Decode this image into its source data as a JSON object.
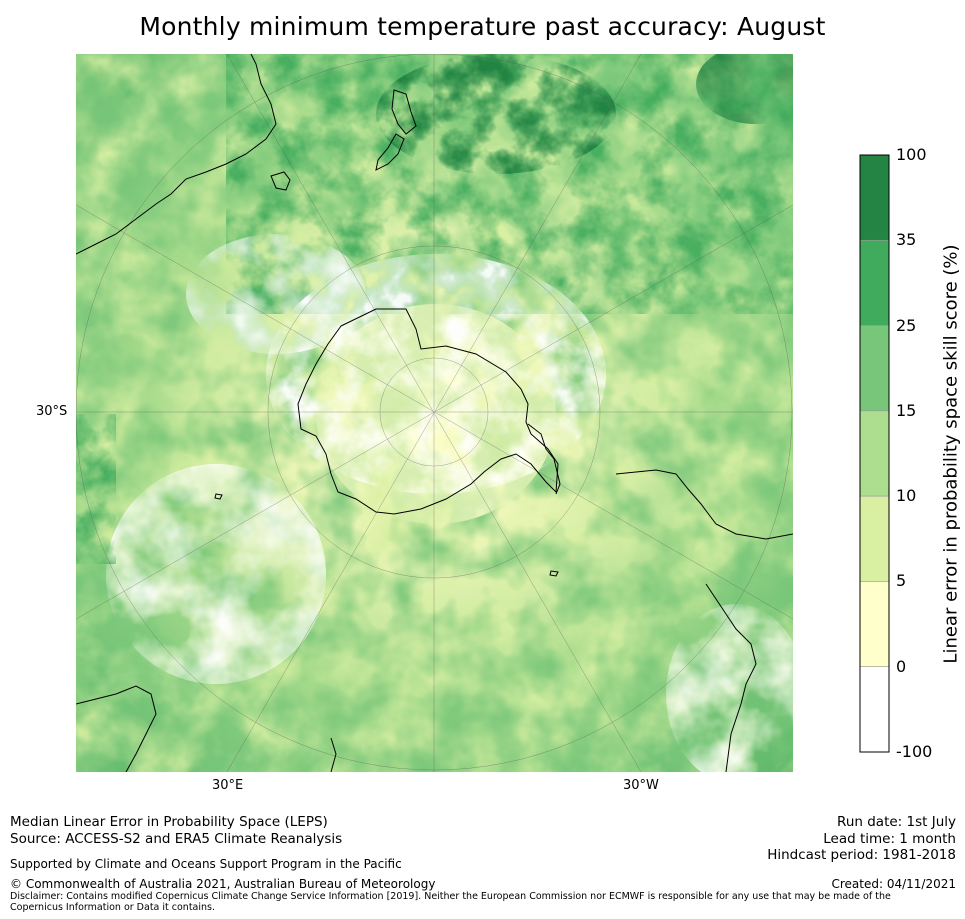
{
  "title": "Monthly minimum temperature past accuracy: August",
  "map": {
    "projection": "south-polar-stereographic",
    "axis_labels": {
      "left": "30°S",
      "bottom_left": "30°E",
      "bottom_right": "30°W"
    },
    "palette": {
      "white": "#ffffff",
      "pale_yellow": "#ffffcc",
      "light_yellow_green": "#d9f0a3",
      "light_green": "#addd8e",
      "green": "#78c679",
      "medium_green": "#41ab5d",
      "dark_green": "#238443"
    }
  },
  "colorbar": {
    "label": "Linear error in probability space skill score (%)",
    "ticks": [
      "100",
      "35",
      "25",
      "15",
      "10",
      "5",
      "0",
      "-100"
    ],
    "bins": [
      {
        "from": 35,
        "to": 100,
        "color": "#238443"
      },
      {
        "from": 25,
        "to": 35,
        "color": "#41ab5d"
      },
      {
        "from": 15,
        "to": 25,
        "color": "#78c679"
      },
      {
        "from": 10,
        "to": 15,
        "color": "#addd8e"
      },
      {
        "from": 5,
        "to": 10,
        "color": "#d9f0a3"
      },
      {
        "from": 0,
        "to": 5,
        "color": "#ffffcc"
      },
      {
        "from": -100,
        "to": 0,
        "color": "#ffffff"
      }
    ]
  },
  "footer": {
    "line1": "Median Linear Error in Probability Space (LEPS)",
    "line2": "Source: ACCESS-S2 and ERA5 Climate Reanalysis",
    "support": "Supported by Climate and Oceans Support Program in the Pacific",
    "copyright": "© Commonwealth of Australia 2021, Australian Bureau of Meteorology",
    "disclaimer": "Disclaimer: Contains modified Copernicus Climate Change Service Information [2019]. Neither the European Commission nor ECMWF is responsible for any use that may be made of the Copernicus Information or Data it contains.",
    "run_date": "Run date: 1st July",
    "lead_time": "Lead time: 1 month",
    "hindcast": "Hindcast period: 1981-2018",
    "created": "Created: 04/11/2021"
  }
}
